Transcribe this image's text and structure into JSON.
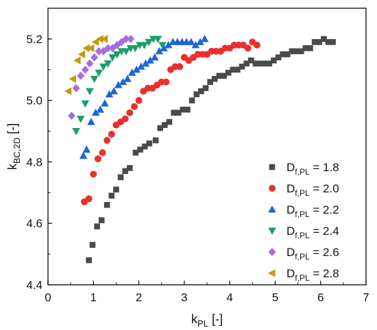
{
  "chart_data": {
    "type": "scatter",
    "title": "",
    "xlabel": {
      "main": "k",
      "sub": "PL",
      "suffix": " [-]"
    },
    "ylabel": {
      "main": "k",
      "sub": "BC,2D",
      "suffix": " [-]"
    },
    "xlim": [
      0,
      7
    ],
    "ylim": [
      4.4,
      5.3
    ],
    "xticks": [
      "0",
      "1",
      "2",
      "3",
      "4",
      "5",
      "6",
      "7"
    ],
    "yticks": [
      "4.4",
      "4.6",
      "4.8",
      "5.0",
      "5.2"
    ],
    "grid": false,
    "legend_position": "bottom-right",
    "series": [
      {
        "name": "D_f,PL = 1.8",
        "legend": {
          "main": "D",
          "sub": "f,PL",
          "suffix": " = 1.8"
        },
        "marker": "square",
        "color": "#4a4a4a",
        "points": [
          [
            0.9,
            4.48
          ],
          [
            0.98,
            4.53
          ],
          [
            1.08,
            4.59
          ],
          [
            1.18,
            4.61
          ],
          [
            1.3,
            4.66
          ],
          [
            1.4,
            4.69
          ],
          [
            1.5,
            4.71
          ],
          [
            1.6,
            4.75
          ],
          [
            1.7,
            4.77
          ],
          [
            1.8,
            4.78
          ],
          [
            1.93,
            4.83
          ],
          [
            2.03,
            4.84
          ],
          [
            2.13,
            4.85
          ],
          [
            2.23,
            4.86
          ],
          [
            2.37,
            4.87
          ],
          [
            2.47,
            4.91
          ],
          [
            2.57,
            4.92
          ],
          [
            2.67,
            4.93
          ],
          [
            2.77,
            4.96
          ],
          [
            2.87,
            4.96
          ],
          [
            2.97,
            4.97
          ],
          [
            3.07,
            4.97
          ],
          [
            3.17,
            5.0
          ],
          [
            3.27,
            5.02
          ],
          [
            3.37,
            5.03
          ],
          [
            3.47,
            5.04
          ],
          [
            3.57,
            5.06
          ],
          [
            3.67,
            5.07
          ],
          [
            3.77,
            5.08
          ],
          [
            3.87,
            5.08
          ],
          [
            3.97,
            5.09
          ],
          [
            4.07,
            5.1
          ],
          [
            4.17,
            5.1
          ],
          [
            4.27,
            5.11
          ],
          [
            4.37,
            5.12
          ],
          [
            4.47,
            5.13
          ],
          [
            4.57,
            5.12
          ],
          [
            4.67,
            5.12
          ],
          [
            4.77,
            5.12
          ],
          [
            4.87,
            5.12
          ],
          [
            4.97,
            5.13
          ],
          [
            5.07,
            5.14
          ],
          [
            5.17,
            5.15
          ],
          [
            5.27,
            5.15
          ],
          [
            5.37,
            5.16
          ],
          [
            5.47,
            5.16
          ],
          [
            5.57,
            5.16
          ],
          [
            5.67,
            5.17
          ],
          [
            5.77,
            5.17
          ],
          [
            5.87,
            5.19
          ],
          [
            5.97,
            5.19
          ],
          [
            6.07,
            5.2
          ],
          [
            6.17,
            5.19
          ],
          [
            6.27,
            5.19
          ]
        ]
      },
      {
        "name": "D_f,PL = 2.0",
        "legend": {
          "main": "D",
          "sub": "f,PL",
          "suffix": " = 2.0"
        },
        "marker": "circle",
        "color": "#e8302e",
        "points": [
          [
            0.8,
            4.67
          ],
          [
            0.9,
            4.68
          ],
          [
            1.0,
            4.76
          ],
          [
            1.1,
            4.81
          ],
          [
            1.2,
            4.83
          ],
          [
            1.3,
            4.87
          ],
          [
            1.4,
            4.89
          ],
          [
            1.5,
            4.92
          ],
          [
            1.6,
            4.93
          ],
          [
            1.7,
            4.94
          ],
          [
            1.8,
            4.96
          ],
          [
            1.9,
            4.98
          ],
          [
            2.0,
            5.0
          ],
          [
            2.1,
            5.03
          ],
          [
            2.2,
            5.04
          ],
          [
            2.3,
            5.04
          ],
          [
            2.4,
            5.05
          ],
          [
            2.5,
            5.06
          ],
          [
            2.6,
            5.06
          ],
          [
            2.7,
            5.1
          ],
          [
            2.8,
            5.11
          ],
          [
            2.9,
            5.11
          ],
          [
            3.0,
            5.14
          ],
          [
            3.1,
            5.13
          ],
          [
            3.2,
            5.14
          ],
          [
            3.3,
            5.15
          ],
          [
            3.4,
            5.15
          ],
          [
            3.5,
            5.15
          ],
          [
            3.6,
            5.16
          ],
          [
            3.7,
            5.16
          ],
          [
            3.8,
            5.16
          ],
          [
            3.9,
            5.17
          ],
          [
            4.0,
            5.17
          ],
          [
            4.1,
            5.18
          ],
          [
            4.2,
            5.18
          ],
          [
            4.3,
            5.18
          ],
          [
            4.4,
            5.17
          ],
          [
            4.5,
            5.19
          ],
          [
            4.6,
            5.18
          ]
        ]
      },
      {
        "name": "D_f,PL = 2.2",
        "legend": {
          "main": "D",
          "sub": "f,PL",
          "suffix": " = 2.2"
        },
        "marker": "triangle-up",
        "color": "#1f66d6",
        "points": [
          [
            0.78,
            4.82
          ],
          [
            0.85,
            4.84
          ],
          [
            0.95,
            4.93
          ],
          [
            1.05,
            4.96
          ],
          [
            1.15,
            4.97
          ],
          [
            1.25,
            4.99
          ],
          [
            1.35,
            5.02
          ],
          [
            1.45,
            5.03
          ],
          [
            1.55,
            5.05
          ],
          [
            1.65,
            5.06
          ],
          [
            1.75,
            5.07
          ],
          [
            1.85,
            5.09
          ],
          [
            1.95,
            5.1
          ],
          [
            2.05,
            5.11
          ],
          [
            2.15,
            5.12
          ],
          [
            2.25,
            5.13
          ],
          [
            2.35,
            5.14
          ],
          [
            2.45,
            5.16
          ],
          [
            2.55,
            5.17
          ],
          [
            2.65,
            5.18
          ],
          [
            2.75,
            5.19
          ],
          [
            2.85,
            5.19
          ],
          [
            2.95,
            5.19
          ],
          [
            3.05,
            5.19
          ],
          [
            3.15,
            5.19
          ],
          [
            3.25,
            5.18
          ],
          [
            3.35,
            5.19
          ],
          [
            3.45,
            5.2
          ]
        ]
      },
      {
        "name": "D_f,PL = 2.4",
        "legend": {
          "main": "D",
          "sub": "f,PL",
          "suffix": " = 2.4"
        },
        "marker": "triangle-down",
        "color": "#1a9e6a",
        "points": [
          [
            0.62,
            4.9
          ],
          [
            0.72,
            4.94
          ],
          [
            0.82,
            4.99
          ],
          [
            0.92,
            5.03
          ],
          [
            1.02,
            5.07
          ],
          [
            1.12,
            5.09
          ],
          [
            1.22,
            5.11
          ],
          [
            1.32,
            5.12
          ],
          [
            1.42,
            5.14
          ],
          [
            1.52,
            5.15
          ],
          [
            1.62,
            5.16
          ],
          [
            1.72,
            5.16
          ],
          [
            1.82,
            5.17
          ],
          [
            1.92,
            5.17
          ],
          [
            2.02,
            5.18
          ],
          [
            2.12,
            5.18
          ],
          [
            2.22,
            5.19
          ],
          [
            2.32,
            5.2
          ],
          [
            2.42,
            5.2
          ],
          [
            2.52,
            5.18
          ]
        ]
      },
      {
        "name": "D_f,PL = 2.6",
        "legend": {
          "main": "D",
          "sub": "f,PL",
          "suffix": " = 2.6"
        },
        "marker": "diamond",
        "color": "#a66de0",
        "points": [
          [
            0.52,
            4.95
          ],
          [
            0.62,
            5.04
          ],
          [
            0.72,
            5.08
          ],
          [
            0.82,
            5.1
          ],
          [
            0.92,
            5.12
          ],
          [
            1.02,
            5.14
          ],
          [
            1.12,
            5.16
          ],
          [
            1.22,
            5.16
          ],
          [
            1.32,
            5.17
          ],
          [
            1.42,
            5.17
          ],
          [
            1.52,
            5.18
          ],
          [
            1.62,
            5.19
          ],
          [
            1.72,
            5.2
          ],
          [
            1.82,
            5.2
          ]
        ]
      },
      {
        "name": "D_f,PL = 2.8",
        "legend": {
          "main": "D",
          "sub": "f,PL",
          "suffix": " = 2.8"
        },
        "marker": "triangle-left",
        "color": "#c29a10",
        "points": [
          [
            0.45,
            5.03
          ],
          [
            0.55,
            5.07
          ],
          [
            0.65,
            5.13
          ],
          [
            0.75,
            5.15
          ],
          [
            0.85,
            5.17
          ],
          [
            0.95,
            5.17
          ],
          [
            1.05,
            5.19
          ],
          [
            1.15,
            5.2
          ],
          [
            1.25,
            5.2
          ]
        ]
      }
    ]
  }
}
